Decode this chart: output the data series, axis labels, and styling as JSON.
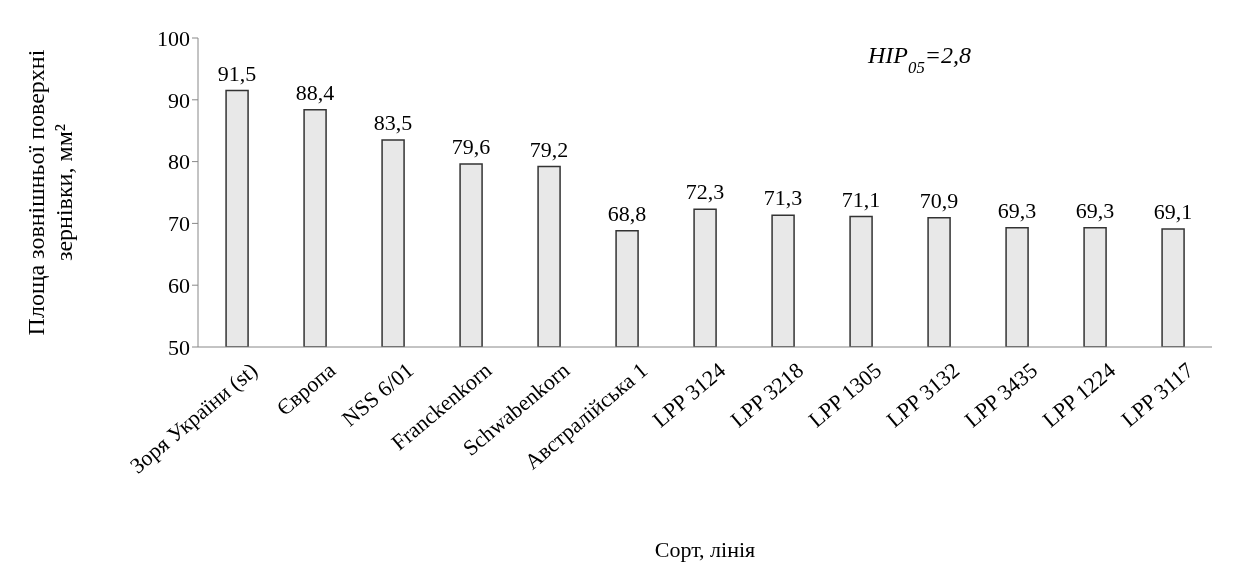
{
  "chart_data": {
    "type": "bar",
    "xlabel": "Сорт, лінія",
    "ylabel": "Площа зовнішньої поверхні зернівки, мм²",
    "categories": [
      "Зоря України (st)",
      "Європа",
      "NSS 6/01",
      "Franckenkorn",
      "Schwabenkorn",
      "Австралійська 1",
      "LPP 3124",
      "LPP 3218",
      "LPP 1305",
      "LPP 3132",
      "LPP 3435",
      "LPP 1224",
      "LPP 3117"
    ],
    "values": [
      91.5,
      88.4,
      83.5,
      79.6,
      79.2,
      68.8,
      72.3,
      71.3,
      71.1,
      70.9,
      69.3,
      69.3,
      69.1
    ],
    "value_labels": [
      "91,5",
      "88,4",
      "83,5",
      "79,6",
      "79,2",
      "68,8",
      "72,3",
      "71,3",
      "71,1",
      "70,9",
      "69,3",
      "69,3",
      "69,1"
    ],
    "color": "#e8e8e8",
    "ylim": [
      50,
      100
    ],
    "yticks": [
      50,
      60,
      70,
      80,
      90,
      100
    ],
    "annotations": [
      "HIP$_{05}$=2,8"
    ]
  }
}
